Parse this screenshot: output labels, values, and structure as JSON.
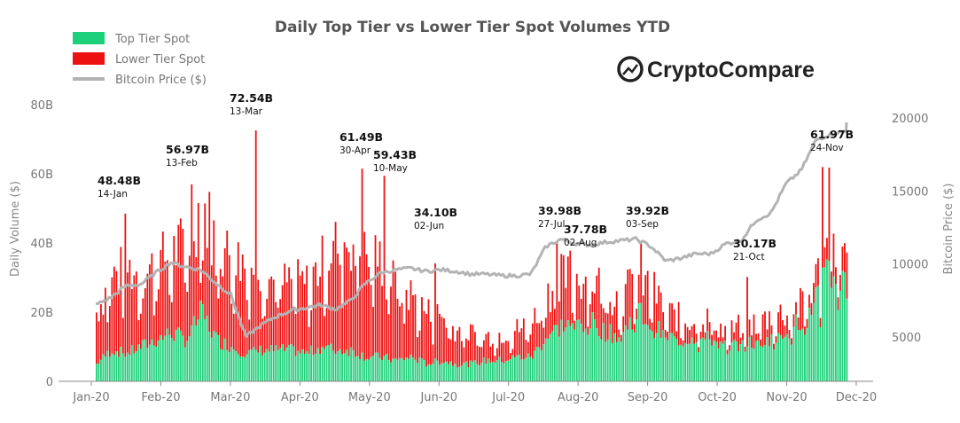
{
  "chart_data": {
    "type": "bar",
    "title": "Daily Top Tier vs Lower Tier Spot Volumes YTD",
    "brand": "CryptoCompare",
    "ylabel": "Daily Volume ($)",
    "y2label": "Bitcoin Price ($)",
    "ylim": [
      0,
      80
    ],
    "y2lim": [
      2000,
      22000
    ],
    "yticks": [
      "0",
      "20B",
      "40B",
      "60B",
      "80B"
    ],
    "y2ticks": [
      "5000",
      "10000",
      "15000",
      "20000"
    ],
    "xticks": [
      "Jan-20",
      "Feb-20",
      "Mar-20",
      "Apr-20",
      "May-20",
      "Jun-20",
      "Jul-20",
      "Aug-20",
      "Sep-20",
      "Oct-20",
      "Nov-20",
      "Dec-20"
    ],
    "legend": {
      "placement": "top-left"
    },
    "colors": {
      "top_tier": "#1fd07a",
      "lower_tier": "#ee1111",
      "btc": "#b3b3b3"
    },
    "series": [
      {
        "name": "Top Tier Spot",
        "unit": "B USD",
        "type": "bar",
        "stacked": true,
        "weekly_avg_approx": [
          5,
          9,
          8,
          10,
          12,
          14,
          12,
          20,
          12,
          10,
          8,
          9,
          9,
          9,
          8,
          10,
          9,
          9,
          7,
          7,
          6,
          7,
          5,
          6,
          5,
          5,
          6,
          6,
          7,
          7,
          13,
          16,
          17,
          17,
          14,
          13,
          21,
          16,
          13,
          12,
          13,
          12,
          10,
          11,
          11,
          13,
          15,
          18,
          25,
          33,
          28
        ]
      },
      {
        "name": "Lower Tier Spot",
        "unit": "B USD",
        "type": "bar",
        "stacked": true,
        "weekly_total_approx": [
          20,
          30,
          33,
          30,
          34,
          37,
          40,
          52,
          40,
          36,
          34,
          33,
          28,
          29,
          28,
          34,
          40,
          41,
          36,
          35,
          27,
          25,
          20,
          19,
          15,
          14,
          13,
          14,
          15,
          17,
          25,
          30,
          30,
          30,
          26,
          24,
          30,
          27,
          20,
          18,
          18,
          18,
          14,
          16,
          17,
          19,
          20,
          22,
          30,
          42,
          34
        ]
      },
      {
        "name": "Bitcoin Price ($)",
        "unit": "USD",
        "type": "line",
        "axis": "right",
        "weekly_approx": [
          7200,
          7700,
          8500,
          8600,
          9400,
          10100,
          9800,
          9600,
          8700,
          7900,
          5000,
          5800,
          6400,
          6800,
          7000,
          7200,
          6900,
          7500,
          8700,
          9400,
          9600,
          9700,
          9500,
          9600,
          9500,
          9300,
          9300,
          9200,
          9200,
          9300,
          11200,
          11700,
          11400,
          11300,
          11500,
          11600,
          11700,
          11200,
          10200,
          10400,
          10700,
          10700,
          11400,
          11600,
          13000,
          13500,
          15500,
          16400,
          18500,
          18900,
          19100
        ]
      }
    ],
    "annotations": [
      {
        "value": "48.48B",
        "date": "14-Jan"
      },
      {
        "value": "56.97B",
        "date": "13-Feb"
      },
      {
        "value": "72.54B",
        "date": "13-Mar"
      },
      {
        "value": "61.49B",
        "date": "30-Apr"
      },
      {
        "value": "59.43B",
        "date": "10-May"
      },
      {
        "value": "34.10B",
        "date": "02-Jun"
      },
      {
        "value": "39.98B",
        "date": "27-Jul"
      },
      {
        "value": "37.78B",
        "date": "02-Aug"
      },
      {
        "value": "39.92B",
        "date": "03-Sep"
      },
      {
        "value": "30.17B",
        "date": "21-Oct"
      },
      {
        "value": "61.97B",
        "date": "24-Nov"
      }
    ]
  }
}
